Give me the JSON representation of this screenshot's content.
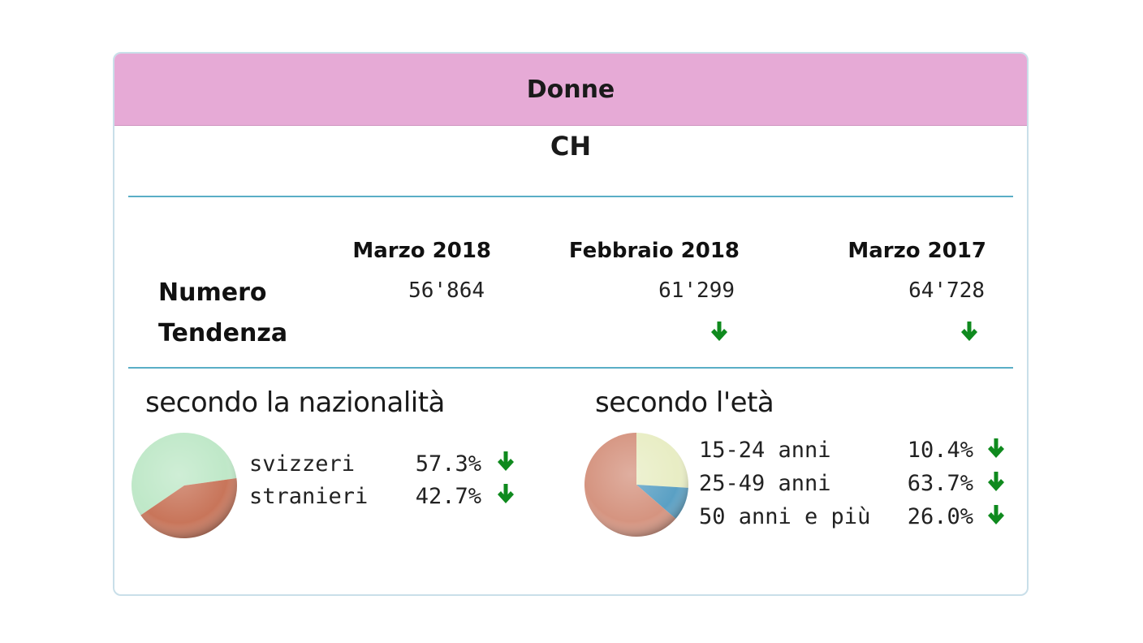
{
  "header": {
    "title": "Donne"
  },
  "region": "CH",
  "table": {
    "columns": [
      "Marzo 2018",
      "Febbraio 2018",
      "Marzo 2017"
    ],
    "rows": {
      "numero": {
        "label": "Numero",
        "values": [
          "56'864",
          "61'299",
          "64'728"
        ]
      },
      "tendenza": {
        "label": "Tendenza",
        "trend": [
          "",
          "down",
          "down"
        ]
      }
    }
  },
  "nationality": {
    "title": "secondo la nazionalità",
    "items": [
      {
        "label": "svizzeri",
        "value": "57.3%",
        "share": 57.3,
        "trend": "down",
        "color": "#bfe8c8"
      },
      {
        "label": "stranieri",
        "value": "42.7%",
        "share": 42.7,
        "trend": "down",
        "color": "#c8755a"
      }
    ]
  },
  "age": {
    "title": "secondo l'età",
    "items": [
      {
        "label": "15-24 anni",
        "value": "10.4%",
        "share": 10.4,
        "trend": "down",
        "color": "#5aa0c4"
      },
      {
        "label": "25-49 anni",
        "value": "63.7%",
        "share": 63.7,
        "trend": "down",
        "color": "#d59480"
      },
      {
        "label": "50 anni e più",
        "value": "26.0%",
        "share": 26.0,
        "trend": "down",
        "color": "#e8edc4"
      }
    ]
  },
  "icons": {
    "trend_down": "green-down-arrow-icon"
  },
  "colors": {
    "header_bg": "#e6aad6",
    "rule": "#5aaec6",
    "arrow": "#0f8a1e"
  }
}
